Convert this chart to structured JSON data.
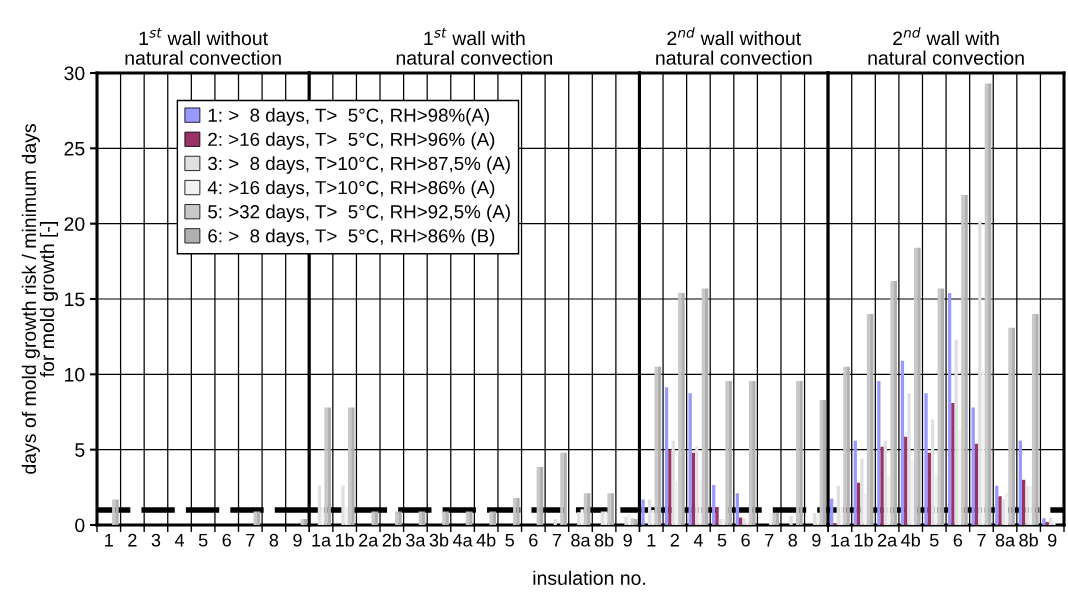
{
  "chart_data": [
    {
      "type": "bar",
      "title": "1$^{st}$ wall without\nnatural convection",
      "ylabel": "days of mold growth risk / minimum days\nfor mold growth [-]",
      "categories": [
        "1",
        "2",
        "3",
        "4",
        "5",
        "6",
        "7",
        "8",
        "9"
      ],
      "series": [
        {
          "name": "1: >  8 days, T>  5°C, RH>98%(A)",
          "color": "#9999ff",
          "values": [
            0,
            0,
            0,
            0,
            0,
            0,
            0,
            0,
            0
          ]
        },
        {
          "name": "2: >16 days, T>  5°C, RH>96% (A)",
          "color": "#993366",
          "values": [
            0,
            0,
            0,
            0,
            0,
            0,
            0,
            0,
            0
          ]
        },
        {
          "name": "3: >  8 days, T>10°C, RH>87,5% (A)",
          "color": "#e0e0e0",
          "values": [
            0,
            0,
            0,
            0,
            0,
            0,
            0,
            0,
            0
          ]
        },
        {
          "name": "4: >16 days, T>10°C, RH>86% (A)",
          "color": "#f2f2f2",
          "values": [
            0,
            0,
            0,
            0,
            0,
            0,
            0,
            0,
            0
          ]
        },
        {
          "name": "5: >32 days, T>  5°C, RH>92,5% (A)",
          "color": "#c8c8c8",
          "values": [
            1.7,
            0,
            0,
            0,
            0,
            0,
            0.9,
            0,
            0.4
          ]
        },
        {
          "name": "6: >  8 days, T>  5°C, RH>86% (B)",
          "color": "#b0b0b0",
          "values": [
            1.7,
            0,
            0,
            0,
            0,
            0,
            0.9,
            0,
            0.4
          ]
        }
      ],
      "ylim": [
        0,
        30
      ],
      "yticks": [
        0,
        5,
        10,
        15,
        20,
        25,
        30
      ],
      "grid": true,
      "legend": "top right",
      "ref_lines": [
        {
          "axis": "y",
          "value": 1,
          "color": "#000000",
          "line_style": "dashed"
        }
      ]
    },
    {
      "type": "bar",
      "title": "1$^{st}$ wall with\nnatural convection",
      "xlabel": "insulation no.",
      "categories": [
        "1a",
        "1b",
        "2a",
        "2b",
        "3a",
        "3b",
        "4a",
        "4b",
        "5",
        "6",
        "7",
        "8a",
        "8b",
        "9"
      ],
      "series": [
        {
          "color": "#9999ff",
          "values": [
            0,
            0,
            0,
            0,
            0,
            0,
            0,
            0,
            0,
            0,
            0,
            0,
            0,
            0
          ]
        },
        {
          "color": "#993366",
          "values": [
            0,
            0,
            0,
            0,
            0,
            0,
            0,
            0,
            0,
            0,
            0,
            0,
            0,
            0
          ]
        },
        {
          "color": "#e0e0e0",
          "values": [
            2.6,
            2.6,
            0,
            0,
            0,
            0,
            0,
            0,
            0,
            0,
            0.4,
            0.85,
            0.9,
            0.55
          ]
        },
        {
          "color": "#f2f2f2",
          "values": [
            1.2,
            1.2,
            0,
            0,
            0,
            0,
            0,
            0,
            0,
            0,
            0,
            1.05,
            0.9,
            0.7
          ]
        },
        {
          "color": "#c8c8c8",
          "values": [
            7.8,
            7.8,
            0.9,
            0.9,
            0.9,
            0.9,
            0.9,
            0.9,
            1.8,
            3.85,
            4.8,
            2.1,
            2.1,
            0.45
          ]
        },
        {
          "color": "#b0b0b0",
          "values": [
            7.8,
            7.8,
            0.9,
            0.9,
            0.9,
            0.9,
            0.9,
            0.9,
            1.8,
            3.85,
            4.8,
            2.1,
            2.1,
            0.4
          ]
        }
      ],
      "ylim": [
        0,
        30
      ],
      "yticks": [
        0,
        5,
        10,
        15,
        20,
        25,
        30
      ],
      "grid": true,
      "tick_labels": "x",
      "ref_lines": [
        {
          "axis": "y",
          "value": 1,
          "color": "#000000",
          "line_style": "dashed"
        }
      ]
    },
    {
      "type": "bar",
      "title": "2$^{nd}$ wall without\nnatural convection",
      "categories": [
        "1",
        "2",
        "4",
        "5",
        "6",
        "7",
        "8",
        "9"
      ],
      "series": [
        {
          "color": "#9999ff",
          "values": [
            1.7,
            9.15,
            8.75,
            2.65,
            2.1,
            0,
            0,
            0
          ]
        },
        {
          "color": "#993366",
          "values": [
            0,
            5.0,
            4.8,
            1.2,
            0.5,
            0,
            0,
            0
          ]
        },
        {
          "color": "#e0e0e0",
          "values": [
            1.7,
            5.6,
            5.2,
            0.4,
            0.45,
            0,
            0.6,
            0.8
          ]
        },
        {
          "color": "#f2f2f2",
          "values": [
            1.0,
            2.8,
            3.0,
            0.4,
            0.45,
            0.8,
            0,
            0.6
          ]
        },
        {
          "color": "#c8c8c8",
          "values": [
            10.5,
            15.4,
            15.7,
            9.55,
            9.55,
            0.8,
            9.55,
            8.3
          ]
        },
        {
          "color": "#b0b0b0",
          "values": [
            10.5,
            15.4,
            15.7,
            9.55,
            9.55,
            0.8,
            9.55,
            8.3
          ]
        }
      ],
      "ylim": [
        0,
        30
      ],
      "yticks": [
        0,
        5,
        10,
        15,
        20,
        25,
        30
      ],
      "grid": true,
      "tick_labels": "x",
      "ref_lines": [
        {
          "axis": "y",
          "value": 1,
          "color": "#000000",
          "line_style": "dashed"
        }
      ]
    },
    {
      "type": "bar",
      "title": "2$^{nd}$ wall with\nnatural convection",
      "categories": [
        "1a",
        "1b",
        "2a",
        "4b",
        "5",
        "6",
        "7",
        "8a",
        "8b",
        "9"
      ],
      "series": [
        {
          "color": "#9999ff",
          "values": [
            1.75,
            5.6,
            9.55,
            10.9,
            8.75,
            15.4,
            7.8,
            2.6,
            5.6,
            0.45
          ]
        },
        {
          "color": "#993366",
          "values": [
            0.1,
            2.8,
            5.2,
            5.85,
            4.8,
            8.1,
            5.4,
            1.9,
            3.0,
            0.2
          ]
        },
        {
          "color": "#e0e0e0",
          "values": [
            2.6,
            4.4,
            5.6,
            8.75,
            7.0,
            12.3,
            20.2,
            1.7,
            2.6,
            0.5
          ]
        },
        {
          "color": "#f2f2f2",
          "values": [
            1.25,
            2.1,
            3.2,
            4.3,
            3.4,
            6.3,
            10.3,
            2.1,
            2.6,
            0.3
          ]
        },
        {
          "color": "#c8c8c8",
          "values": [
            10.5,
            14.0,
            16.2,
            18.4,
            15.7,
            21.9,
            29.3,
            13.1,
            14.0,
            0
          ]
        },
        {
          "color": "#b0b0b0",
          "values": [
            10.5,
            14.0,
            16.2,
            18.4,
            15.7,
            21.9,
            29.3,
            13.1,
            14.0,
            0
          ]
        }
      ],
      "ylim": [
        0,
        30
      ],
      "yticks": [
        0,
        5,
        10,
        15,
        20,
        25,
        30
      ],
      "grid": true,
      "tick_labels": "x",
      "ref_lines": [
        {
          "axis": "y",
          "value": 1,
          "color": "#000000",
          "line_style": "dashed"
        }
      ]
    }
  ]
}
